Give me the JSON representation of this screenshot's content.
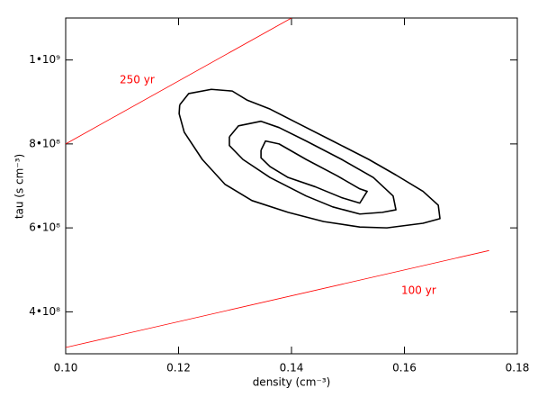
{
  "chart_data": {
    "type": "line",
    "xlabel": "density (cm⁻³)",
    "ylabel": "tau (s cm⁻³)",
    "xlim": [
      0.1,
      0.18
    ],
    "ylim": [
      300000000,
      1100000000
    ],
    "xticks": [
      {
        "value": 0.1,
        "label": "0.10"
      },
      0.12,
      0.14,
      0.16,
      {
        "value": 0.18,
        "label": "0.18"
      }
    ],
    "yticks": [
      {
        "value": 400000000,
        "label": "4•10⁸"
      },
      {
        "value": 600000000,
        "label": "6•10⁸"
      },
      {
        "value": 800000000,
        "label": "8•10⁸"
      },
      {
        "value": 1000000000,
        "label": "1•10⁹"
      }
    ],
    "series": [
      {
        "name": "250 yr",
        "color": "#ff0000",
        "x": [
          0.1,
          0.14
        ],
        "values": [
          800000000,
          1100000000
        ]
      },
      {
        "name": "100 yr",
        "color": "#ff0000",
        "x": [
          0.1,
          0.175
        ],
        "values": [
          315000000,
          546000000
        ]
      },
      {
        "color": "#000000",
        "x": [
          0.1202,
          0.1218,
          0.1258,
          0.1295,
          0.1322,
          0.1362,
          0.141,
          0.1473,
          0.1537,
          0.1585,
          0.1633,
          0.166,
          0.1663,
          0.1633,
          0.1569,
          0.1521,
          0.1457,
          0.1394,
          0.133,
          0.1282,
          0.1242,
          0.121,
          0.1201,
          0.1202
        ],
        "values": [
          893000000,
          920000000,
          930000000,
          926000000,
          904000000,
          883000000,
          850000000,
          807000000,
          763000000,
          726000000,
          687000000,
          654000000,
          622000000,
          611000000,
          600000000,
          602000000,
          615000000,
          637000000,
          665000000,
          704000000,
          763000000,
          828000000,
          872000000,
          893000000
        ]
      },
      {
        "color": "#000000",
        "x": [
          0.129,
          0.1306,
          0.1346,
          0.1378,
          0.1426,
          0.1489,
          0.1545,
          0.158,
          0.1585,
          0.1561,
          0.1521,
          0.1473,
          0.1426,
          0.1362,
          0.1314,
          0.129,
          0.129
        ],
        "values": [
          817000000,
          843000000,
          854000000,
          839000000,
          807000000,
          763000000,
          720000000,
          676000000,
          643000000,
          637000000,
          633000000,
          650000000,
          676000000,
          720000000,
          763000000,
          796000000,
          817000000
        ]
      },
      {
        "color": "#000000",
        "x": [
          0.1346,
          0.1354,
          0.1378,
          0.1426,
          0.1481,
          0.1521,
          0.1534,
          0.1521,
          0.1489,
          0.1442,
          0.1394,
          0.1362,
          0.1346,
          0.1346
        ],
        "values": [
          785000000,
          807000000,
          800000000,
          763000000,
          724000000,
          693000000,
          687000000,
          659000000,
          672000000,
          698000000,
          720000000,
          746000000,
          767000000,
          785000000
        ]
      }
    ]
  }
}
